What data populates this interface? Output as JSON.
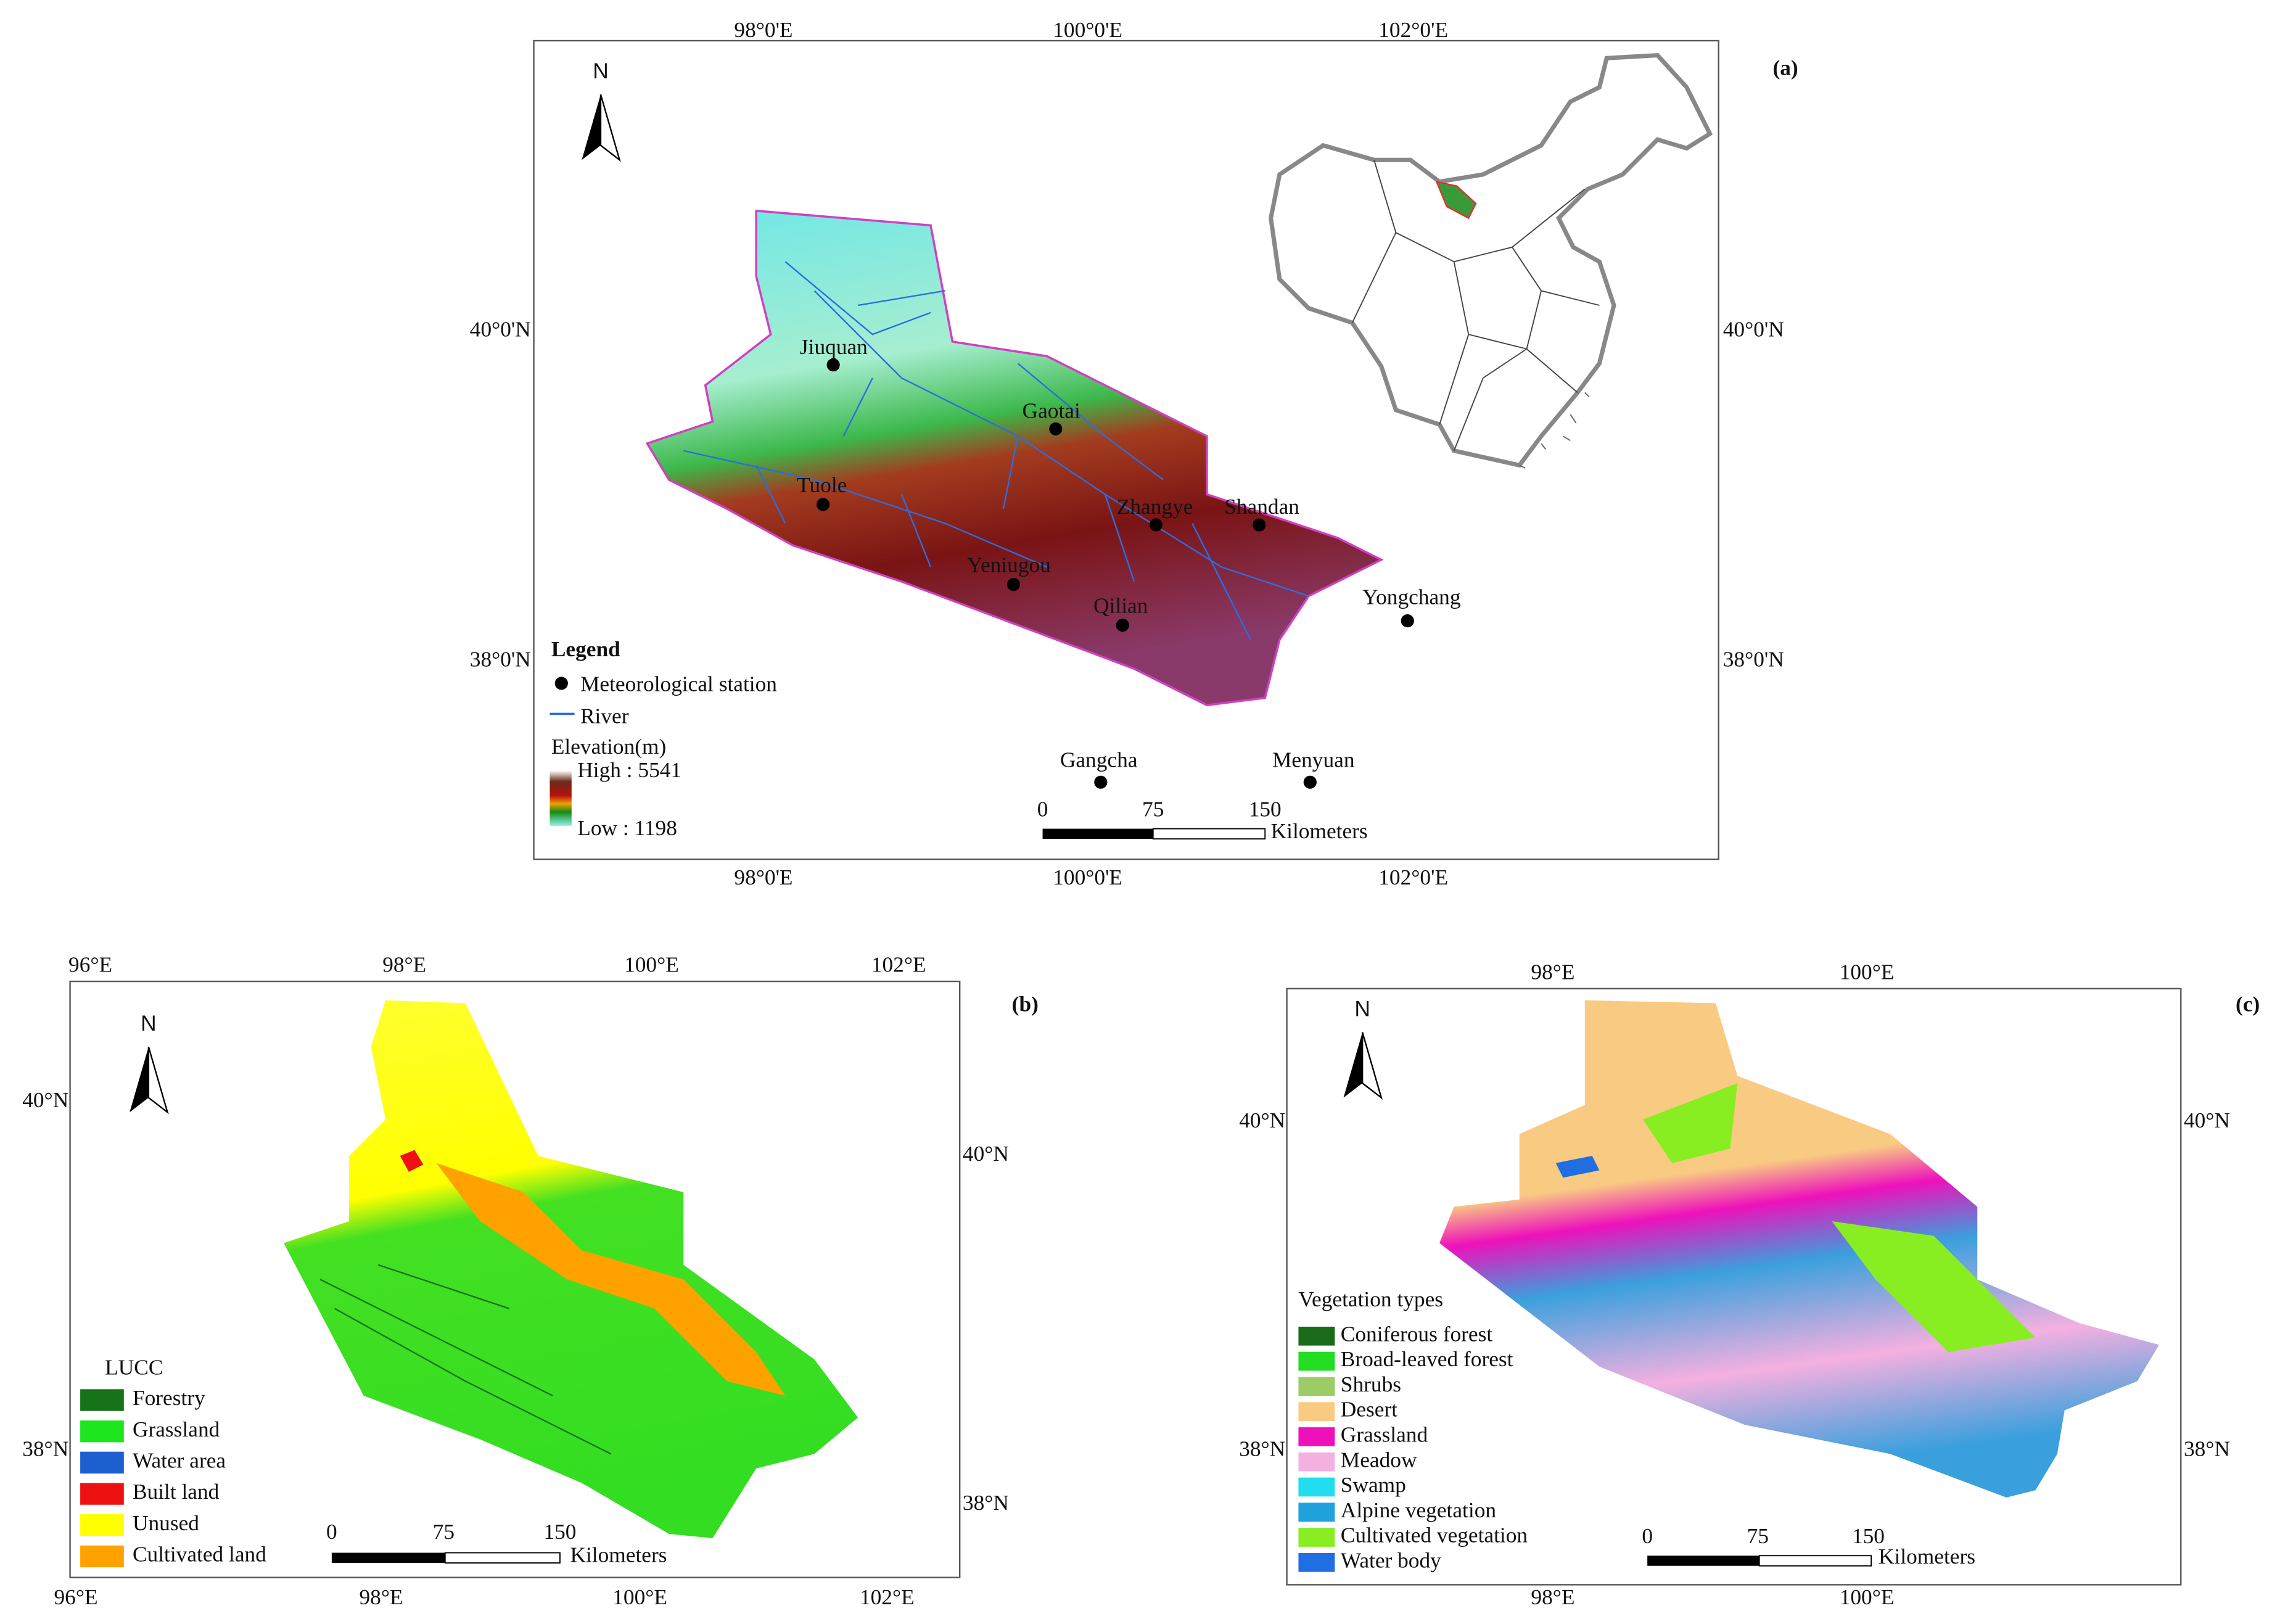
{
  "panels": [
    {
      "label": "(a)",
      "top_ticks": [
        "98°0'E",
        "100°0'E",
        "102°0'E"
      ],
      "bottom_ticks": [
        "98°0'E",
        "100°0'E",
        "102°0'E"
      ],
      "left_ticks": [
        "40°0'N",
        "38°0'N"
      ],
      "right_ticks": [
        "40°0'N",
        "38°0'N"
      ],
      "north": "N",
      "stations": [
        "Jiuquan",
        "Gaotai",
        "Tuole",
        "Zhangye",
        "Shandan",
        "Yeniugou",
        "Qilian",
        "Yongchang",
        "Gangcha",
        "Menyuan"
      ],
      "legend": {
        "title": "Legend",
        "station": "Meteorological station",
        "river": "River",
        "elevation_title": "Elevation(m)",
        "high": "High : 5541",
        "low": "Low : 1198"
      },
      "scale": {
        "ticks": [
          "0",
          "75",
          "150"
        ],
        "unit": "Kilometers"
      }
    },
    {
      "label": "(b)",
      "top_ticks": [
        "96°E",
        "98°E",
        "100°E",
        "102°E"
      ],
      "bottom_ticks": [
        "96°E",
        "98°E",
        "100°E",
        "102°E"
      ],
      "left_ticks": [
        "40°N",
        "38°N"
      ],
      "right_ticks": [
        "40°N",
        "38°N"
      ],
      "north": "N",
      "legend": {
        "title": "LUCC",
        "items": [
          {
            "name": "Forestry",
            "color": "#17731a"
          },
          {
            "name": "Grassland",
            "color": "#1ee61e"
          },
          {
            "name": "Water area",
            "color": "#1d5fd0"
          },
          {
            "name": "Built land",
            "color": "#ee1111"
          },
          {
            "name": "Unused",
            "color": "#ffff00"
          },
          {
            "name": "Cultivated land",
            "color": "#ffa200"
          }
        ]
      },
      "scale": {
        "ticks": [
          "0",
          "75",
          "150"
        ],
        "unit": "Kilometers"
      }
    },
    {
      "label": "(c)",
      "top_ticks": [
        "98°E",
        "100°E"
      ],
      "bottom_ticks": [
        "98°E",
        "100°E"
      ],
      "left_ticks": [
        "40°N",
        "38°N"
      ],
      "right_ticks": [
        "40°N",
        "38°N"
      ],
      "north": "N",
      "legend": {
        "title": "Vegetation types",
        "items": [
          {
            "name": "Coniferous forest",
            "color": "#1a6b1a"
          },
          {
            "name": "Broad-leaved forest",
            "color": "#22dd22"
          },
          {
            "name": "Shrubs",
            "color": "#9ccc66"
          },
          {
            "name": "Desert",
            "color": "#f9ca82"
          },
          {
            "name": "Grassland",
            "color": "#ee11bb"
          },
          {
            "name": "Meadow",
            "color": "#f4b0e0"
          },
          {
            "name": "Swamp",
            "color": "#22dcef"
          },
          {
            "name": "Alpine vegetation",
            "color": "#22a2dd"
          },
          {
            "name": "Cultivated vegetation",
            "color": "#88ee22"
          },
          {
            "name": "Water body",
            "color": "#1f6ee2"
          }
        ]
      },
      "scale": {
        "ticks": [
          "0",
          "75",
          "150"
        ],
        "unit": "Kilometers"
      }
    }
  ]
}
